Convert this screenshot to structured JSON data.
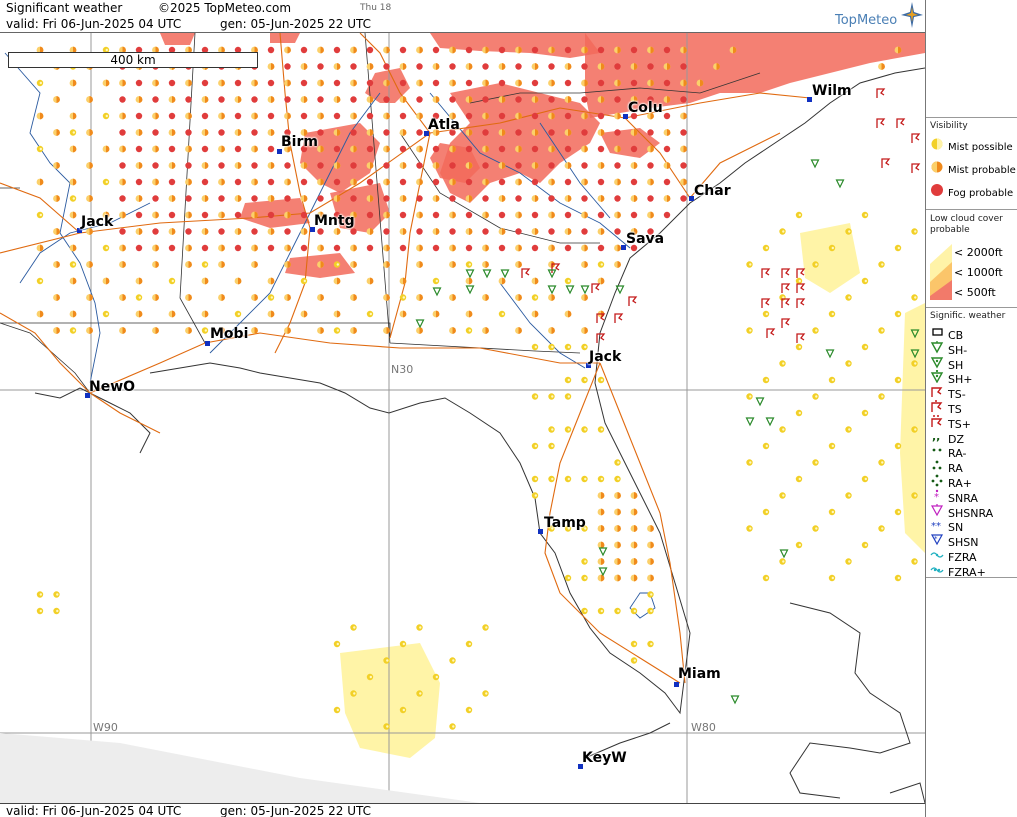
{
  "header": {
    "product": "Significant weather",
    "copyright": "©2025 TopMeteo.com",
    "day": "Thu 18",
    "valid": "valid:  Fri  06-Jun-2025  04 UTC",
    "gen": "gen: 05-Jun-2025 22 UTC",
    "logo_text": "TopMeteo"
  },
  "footer": {
    "valid": "valid:  Fri  06-Jun-2025  04 UTC",
    "gen": "gen: 05-Jun-2025 22 UTC"
  },
  "map": {
    "scale_label": "400 km",
    "grid_labels": {
      "w90": "W90",
      "w80": "W80",
      "n30": "N30"
    },
    "cities": [
      {
        "id": "birm",
        "name": "Birm"
      },
      {
        "id": "atla",
        "name": "Atla"
      },
      {
        "id": "colu",
        "name": "Colu"
      },
      {
        "id": "wilm",
        "name": "Wilm"
      },
      {
        "id": "char",
        "name": "Char"
      },
      {
        "id": "sava",
        "name": "Sava"
      },
      {
        "id": "jack-ms",
        "name": "Jack"
      },
      {
        "id": "mntg",
        "name": "Mntg"
      },
      {
        "id": "mobi",
        "name": "Mobi"
      },
      {
        "id": "newo",
        "name": "NewO"
      },
      {
        "id": "jack-fl",
        "name": "Jack"
      },
      {
        "id": "tamp",
        "name": "Tamp"
      },
      {
        "id": "miam",
        "name": "Miam"
      },
      {
        "id": "keyw",
        "name": "KeyW"
      }
    ]
  },
  "legend": {
    "visibility": {
      "title": "Visibility",
      "items": [
        "Mist possible",
        "Mist probable",
        "Fog probable"
      ]
    },
    "cloud": {
      "title": "Low cloud cover probable",
      "items": [
        "< 2000ft",
        "< 1000ft",
        "<  500ft"
      ]
    },
    "sigwx": {
      "title": "Signific. weather",
      "items": [
        "CB",
        "SH-",
        "SH",
        "SH+",
        "TS-",
        "TS",
        "TS+",
        "DZ",
        "RA-",
        "RA",
        "RA+",
        "SNRA",
        "SHSNRA",
        "SN",
        "SHSN",
        "FZRA",
        "FZRA+"
      ]
    },
    "colors": {
      "mist_possible": "#f2d027",
      "mist_probable": "#f08a1c",
      "fog_probable": "#e03c3c",
      "cloud_2000": "#fff3a8",
      "cloud_1000": "#fbc56a",
      "cloud_500": "#f27a6a",
      "ts": "#c41a1a",
      "sh": "#2a8a2a",
      "city": "#1030c0",
      "roads": "#e06a10",
      "rivers": "#2a5aa0"
    }
  }
}
